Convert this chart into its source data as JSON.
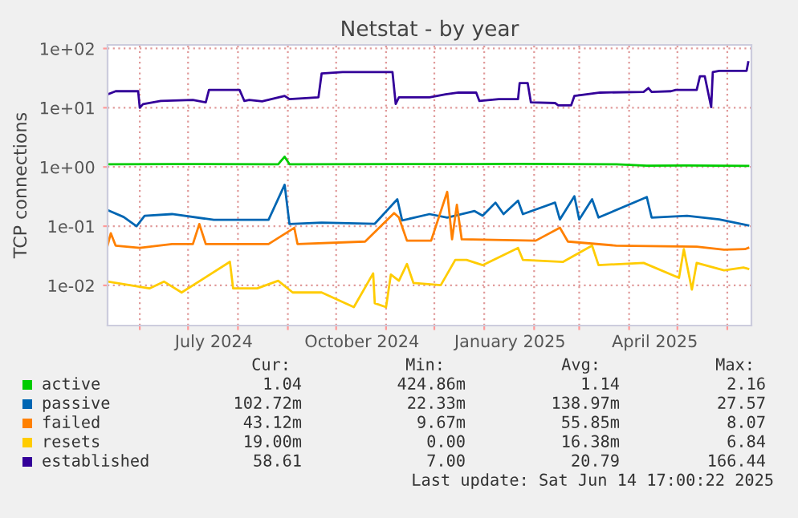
{
  "chart_data": {
    "type": "line",
    "title": "Netstat - by year",
    "ylabel": "TCP connections",
    "log": "y",
    "grid": true,
    "legend": "bottom",
    "marker": "none",
    "line_style": "solid",
    "xlim": [
      "2024-05-12",
      "2025-06-16"
    ],
    "ylim": [
      0.0021,
      115
    ],
    "yticks": [
      {
        "value": 0.01,
        "label": "1e-02"
      },
      {
        "value": 0.1,
        "label": "1e-01"
      },
      {
        "value": 1,
        "label": "1e+00"
      },
      {
        "value": 10,
        "label": "1e+01"
      },
      {
        "value": 100,
        "label": "1e+02"
      }
    ],
    "xticks": [
      {
        "value": "2024-06-01",
        "label": null
      },
      {
        "value": "2024-07-01",
        "label": null
      },
      {
        "value": "2024-07-17",
        "label": "July 2024"
      },
      {
        "value": "2024-08-01",
        "label": null
      },
      {
        "value": "2024-09-01",
        "label": null
      },
      {
        "value": "2024-10-01",
        "label": null
      },
      {
        "value": "2024-10-17",
        "label": "October 2024"
      },
      {
        "value": "2024-11-01",
        "label": null
      },
      {
        "value": "2024-12-01",
        "label": null
      },
      {
        "value": "2025-01-01",
        "label": null
      },
      {
        "value": "2025-01-17",
        "label": "January 2025"
      },
      {
        "value": "2025-02-01",
        "label": null
      },
      {
        "value": "2025-03-01",
        "label": null
      },
      {
        "value": "2025-04-01",
        "label": null
      },
      {
        "value": "2025-04-17",
        "label": "April 2025"
      },
      {
        "value": "2025-05-01",
        "label": null
      },
      {
        "value": "2025-06-01",
        "label": null
      }
    ],
    "series": [
      {
        "name": "active",
        "color": "#00cc00",
        "x": [
          "2024-05-12",
          "2024-06-21",
          "2024-08-26",
          "2024-08-30",
          "2024-09-02",
          "2024-11-08",
          "2024-12-26",
          "2025-01-22",
          "2025-03-24",
          "2025-04-12",
          "2025-05-07",
          "2025-06-14"
        ],
        "values": [
          1.11,
          1.12,
          1.11,
          1.49,
          1.11,
          1.12,
          1.12,
          1.13,
          1.11,
          1.05,
          1.06,
          1.04
        ]
      },
      {
        "name": "passive",
        "color": "#0066b3",
        "x": [
          "2024-05-12",
          "2024-05-22",
          "2024-05-30",
          "2024-06-04",
          "2024-06-21",
          "2024-07-17",
          "2024-08-20",
          "2024-08-30",
          "2024-09-02",
          "2024-09-22",
          "2024-10-25",
          "2024-11-08",
          "2024-11-11",
          "2024-11-28",
          "2024-12-09",
          "2024-12-26",
          "2024-12-31",
          "2025-01-08",
          "2025-01-13",
          "2025-01-22",
          "2025-01-25",
          "2025-02-14",
          "2025-02-17",
          "2025-02-26",
          "2025-03-01",
          "2025-03-09",
          "2025-03-13",
          "2025-04-12",
          "2025-04-15",
          "2025-05-07",
          "2025-05-27",
          "2025-06-14"
        ],
        "values": [
          0.187,
          0.143,
          0.1,
          0.15,
          0.16,
          0.128,
          0.128,
          0.5,
          0.109,
          0.115,
          0.11,
          0.285,
          0.125,
          0.16,
          0.14,
          0.18,
          0.15,
          0.25,
          0.16,
          0.27,
          0.16,
          0.25,
          0.13,
          0.32,
          0.13,
          0.285,
          0.14,
          0.31,
          0.14,
          0.15,
          0.13,
          0.103
        ]
      },
      {
        "name": "failed",
        "color": "#ff8000",
        "x": [
          "2024-05-12",
          "2024-05-14",
          "2024-05-17",
          "2024-06-01",
          "2024-06-21",
          "2024-07-04",
          "2024-07-08",
          "2024-07-12",
          "2024-08-20",
          "2024-09-05",
          "2024-09-07",
          "2024-10-19",
          "2024-11-06",
          "2024-11-09",
          "2024-11-14",
          "2024-11-29",
          "2024-12-09",
          "2024-12-12",
          "2024-12-15",
          "2024-12-18",
          "2025-02-02",
          "2025-02-17",
          "2025-02-22",
          "2025-03-24",
          "2025-05-13",
          "2025-05-30",
          "2025-06-12",
          "2025-06-14"
        ],
        "values": [
          0.047,
          0.076,
          0.047,
          0.043,
          0.05,
          0.05,
          0.109,
          0.05,
          0.05,
          0.094,
          0.05,
          0.055,
          0.166,
          0.14,
          0.057,
          0.057,
          0.38,
          0.06,
          0.23,
          0.06,
          0.057,
          0.094,
          0.055,
          0.047,
          0.045,
          0.04,
          0.041,
          0.043
        ]
      },
      {
        "name": "resets",
        "color": "#ffcc00",
        "x": [
          "2024-05-12",
          "2024-06-07",
          "2024-06-16",
          "2024-06-27",
          "2024-07-27",
          "2024-07-29",
          "2024-08-13",
          "2024-08-26",
          "2024-09-04",
          "2024-09-22",
          "2024-10-12",
          "2024-10-24",
          "2024-10-25",
          "2024-11-01",
          "2024-11-04",
          "2024-11-09",
          "2024-11-14",
          "2024-11-18",
          "2024-12-05",
          "2024-12-14",
          "2024-12-21",
          "2024-12-31",
          "2025-01-22",
          "2025-01-25",
          "2025-02-19",
          "2025-03-09",
          "2025-03-13",
          "2025-04-10",
          "2025-05-02",
          "2025-05-05",
          "2025-05-10",
          "2025-05-13",
          "2025-05-30",
          "2025-06-11",
          "2025-06-14"
        ],
        "values": [
          0.0116,
          0.0089,
          0.0116,
          0.0076,
          0.025,
          0.0089,
          0.0089,
          0.012,
          0.0076,
          0.0076,
          0.0043,
          0.016,
          0.005,
          0.0043,
          0.0153,
          0.012,
          0.023,
          0.011,
          0.0101,
          0.027,
          0.027,
          0.022,
          0.043,
          0.027,
          0.025,
          0.047,
          0.022,
          0.024,
          0.0134,
          0.041,
          0.0085,
          0.024,
          0.018,
          0.02,
          0.019
        ]
      },
      {
        "name": "established",
        "color": "#330099",
        "x": [
          "2024-05-12",
          "2024-05-17",
          "2024-05-31",
          "2024-06-01",
          "2024-06-03",
          "2024-06-14",
          "2024-07-04",
          "2024-07-12",
          "2024-07-14",
          "2024-08-02",
          "2024-08-05",
          "2024-08-08",
          "2024-08-16",
          "2024-08-30",
          "2024-09-02",
          "2024-09-20",
          "2024-09-22",
          "2024-10-05",
          "2024-11-05",
          "2024-11-07",
          "2024-11-09",
          "2024-11-28",
          "2024-12-08",
          "2024-12-16",
          "2024-12-27",
          "2024-12-29",
          "2025-01-10",
          "2025-01-22",
          "2025-01-23",
          "2025-01-28",
          "2025-01-30",
          "2025-02-14",
          "2025-02-16",
          "2025-02-24",
          "2025-02-26",
          "2025-03-14",
          "2025-04-10",
          "2025-04-13",
          "2025-04-15",
          "2025-04-27",
          "2025-04-30",
          "2025-05-13",
          "2025-05-15",
          "2025-05-18",
          "2025-05-22",
          "2025-05-23",
          "2025-05-27",
          "2025-06-13",
          "2025-06-14"
        ],
        "values": [
          16.8,
          19,
          19,
          10,
          11.5,
          13,
          13.5,
          12.3,
          20,
          20,
          13,
          13.5,
          12.8,
          15.8,
          14,
          15,
          38,
          40,
          40,
          11.6,
          15,
          15,
          16.8,
          18,
          18,
          13,
          14,
          14,
          26,
          26,
          12.3,
          12,
          11,
          11,
          15.8,
          18,
          18.5,
          21.5,
          18.5,
          19,
          20,
          20,
          34,
          34,
          10.2,
          40,
          42,
          42,
          58.6
        ]
      }
    ],
    "annotations": [
      "Cur:",
      "Min:",
      "Avg:",
      "Max:",
      "1.04",
      "424.86m",
      "1.14",
      "2.16",
      "102.72m",
      "22.33m",
      "138.97m",
      "27.57",
      "43.12m",
      "9.67m",
      "55.85m",
      "8.07",
      "19.00m",
      "0.00",
      "16.38m",
      "6.84",
      "58.61",
      "7.00",
      "20.79",
      "166.44",
      "Last update: Sat Jun 14 17:00:22 2025"
    ]
  }
}
